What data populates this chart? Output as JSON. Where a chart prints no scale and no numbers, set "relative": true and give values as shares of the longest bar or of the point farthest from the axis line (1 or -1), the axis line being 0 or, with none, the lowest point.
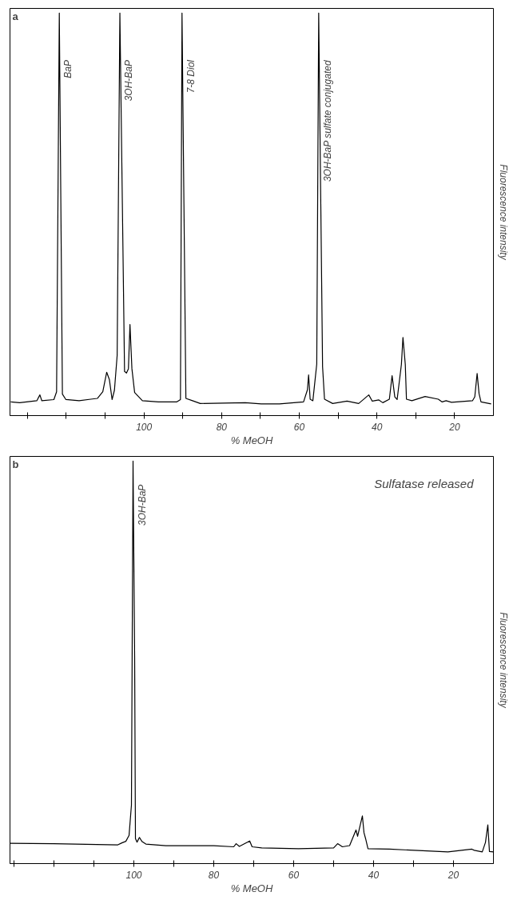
{
  "chart_data": [
    {
      "type": "line",
      "relative": true,
      "xlabel": "% MeOH",
      "ylabel": "Fluorescence intensity",
      "xlim": [
        134.5,
        10
      ],
      "xticks": [
        {
          "value": 130,
          "label": null
        },
        {
          "value": 120,
          "label": null
        },
        {
          "value": 110,
          "label": null
        },
        100,
        {
          "value": 90,
          "label": null
        },
        80,
        {
          "value": 70,
          "label": null
        },
        60,
        {
          "value": 50,
          "label": null
        },
        40,
        {
          "value": 30,
          "label": null
        },
        20
      ],
      "grid": false,
      "marker": "none",
      "line_style": "solid",
      "annotations": [
        "a",
        {
          "text": "BaP",
          "x": 121.8,
          "y": 0.88
        },
        {
          "text": "3OH-BaP",
          "x": 106.2,
          "y": 0.88
        },
        {
          "text": "7-8 Diol",
          "x": 90.2,
          "y": 0.88
        },
        {
          "text": "3OH-BaP sulfate conjugated",
          "x": 55,
          "y": 0.88
        }
      ],
      "series": [
        {
          "color": "#000000",
          "x": [
            134.3,
            132,
            127.6,
            126.8,
            126.3,
            123.2,
            122.5,
            121.8,
            121,
            120.1,
            116.7,
            113.7,
            112,
            110.6,
            109.6,
            108.9,
            108.2,
            107.6,
            106.9,
            106.2,
            105,
            104.5,
            104,
            103.6,
            103.1,
            102.4,
            100.4,
            96.3,
            91.6,
            90.6,
            90.2,
            89.2,
            87.5,
            85.5,
            73.9,
            69.8,
            65.1,
            58.9,
            57.9,
            57.6,
            57.2,
            56.5,
            55.5,
            55,
            54,
            53.5,
            51.4,
            47.7,
            44.7,
            42.1,
            41.2,
            39.5,
            38.5,
            36.8,
            36.1,
            35.4,
            34.8,
            33.7,
            33.3,
            32.7,
            32.4,
            31,
            27.6,
            24.2,
            23.2,
            22.2,
            20.8,
            15.4,
            14.8,
            14.2,
            13.7,
            13.2,
            10.6
          ],
          "values": [
            0.005,
            0.003,
            0.008,
            0.023,
            0.008,
            0.011,
            0.031,
            1,
            0.025,
            0.011,
            0.008,
            0.012,
            0.014,
            0.031,
            0.081,
            0.062,
            0.011,
            0.035,
            0.124,
            1,
            0.083,
            0.079,
            0.09,
            0.203,
            0.09,
            0.029,
            0.008,
            0.005,
            0.005,
            0.011,
            1,
            0.014,
            0.008,
            0.001,
            0.003,
            0,
            0,
            0.005,
            0.036,
            0.074,
            0.012,
            0.008,
            0.102,
            1,
            0.095,
            0.012,
            0.001,
            0.007,
            0.001,
            0.023,
            0.007,
            0.01,
            0.003,
            0.012,
            0.072,
            0.018,
            0.011,
            0.101,
            0.17,
            0.101,
            0.012,
            0.008,
            0.019,
            0.012,
            0.005,
            0.008,
            0.004,
            0.008,
            0.018,
            0.078,
            0.026,
            0.005,
            0
          ]
        }
      ]
    },
    {
      "type": "line",
      "relative": true,
      "xlabel": "% MeOH",
      "ylabel": "Fluorescence intensity",
      "xlim": [
        131,
        10
      ],
      "xticks": [
        {
          "value": 130,
          "label": null
        },
        {
          "value": 120,
          "label": null
        },
        {
          "value": 110,
          "label": null
        },
        100,
        {
          "value": 90,
          "label": null
        },
        80,
        {
          "value": 70,
          "label": null
        },
        60,
        {
          "value": 50,
          "label": null
        },
        40,
        {
          "value": 30,
          "label": null
        },
        20
      ],
      "grid": false,
      "marker": "none",
      "line_style": "solid",
      "annotations": [
        "b",
        "Sulfatase released",
        {
          "text": "3OH-BaP",
          "x": 100.2,
          "y": 0.94
        }
      ],
      "series": [
        {
          "color": "#000000",
          "x": [
            131,
            120,
            104,
            103,
            102,
            101.2,
            100.6,
            100.2,
            99.8,
            99.6,
            99.2,
            98.6,
            98,
            97,
            92,
            80,
            75,
            74.4,
            73.6,
            71,
            70.4,
            68,
            58.8,
            50,
            49,
            47.8,
            46,
            44.4,
            44,
            42.8,
            42.4,
            42,
            41.4,
            36,
            21.4,
            15.4,
            14.8,
            12.8,
            12,
            11.4,
            11,
            10
          ],
          "values": [
            0.022,
            0.021,
            0.018,
            0.023,
            0.027,
            0.042,
            0.12,
            1,
            0.5,
            0.034,
            0.025,
            0.037,
            0.027,
            0.02,
            0.016,
            0.016,
            0.013,
            0.021,
            0.014,
            0.028,
            0.013,
            0.01,
            0.008,
            0.01,
            0.021,
            0.013,
            0.016,
            0.056,
            0.04,
            0.092,
            0.049,
            0.034,
            0.008,
            0.007,
            0,
            0.007,
            0.004,
            0,
            0.024,
            0.069,
            0.001,
            0
          ]
        }
      ]
    }
  ]
}
